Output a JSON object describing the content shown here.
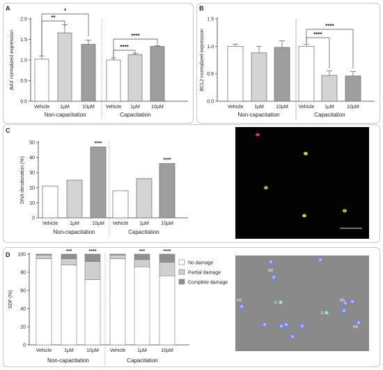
{
  "figure": {
    "panels": [
      {
        "letter": "A",
        "chart_data": {
          "type": "bar",
          "ylabel": "BAX normalized expression",
          "ylabel_italic": "BAX",
          "ylabel_rest": " normalized expression",
          "ylim": [
            0,
            2.0
          ],
          "yticks": [
            "0.0",
            "0.5",
            "1.0",
            "1.5",
            "2.0"
          ],
          "groups": [
            {
              "name": "Non-capacitation",
              "categories": [
                "Vehicle",
                "1µM",
                "10µM"
              ],
              "values": [
                1.02,
                1.66,
                1.38
              ],
              "errors": [
                0.08,
                0.2,
                0.1
              ]
            },
            {
              "name": "Capacitation",
              "categories": [
                "Vehicle",
                "1µM",
                "10µM"
              ],
              "values": [
                1.0,
                1.13,
                1.33
              ],
              "errors": [
                0.05,
                0.03,
                0.02
              ]
            }
          ],
          "significance": [
            "**",
            "*",
            "****",
            "****"
          ]
        }
      },
      {
        "letter": "B",
        "chart_data": {
          "type": "bar",
          "ylabel": "BCL2 normalized expression",
          "ylabel_italic": "BCL2",
          "ylabel_rest": " normalized expression",
          "ylim": [
            0,
            1.5
          ],
          "yticks": [
            "0.0",
            "0.5",
            "1.0",
            "1.5"
          ],
          "groups": [
            {
              "name": "Non-capacitation",
              "categories": [
                "Vehicle",
                "1µM",
                "10µM"
              ],
              "values": [
                1.0,
                0.88,
                0.98
              ],
              "errors": [
                0.04,
                0.12,
                0.12
              ]
            },
            {
              "name": "Capacitation",
              "categories": [
                "Vehicle",
                "1µM",
                "10µM"
              ],
              "values": [
                1.0,
                0.47,
                0.46
              ],
              "errors": [
                0.04,
                0.08,
                0.08
              ]
            }
          ],
          "significance": [
            "****",
            "****"
          ]
        }
      },
      {
        "letter": "C",
        "chart_data": {
          "type": "bar",
          "ylabel": "DNA denaturation (%)",
          "ylim": [
            0,
            50
          ],
          "yticks": [
            "0",
            "10",
            "20",
            "30",
            "40",
            "50"
          ],
          "groups": [
            {
              "name": "Non-capacitation",
              "categories": [
                "Vehicle",
                "1µM",
                "10µM"
              ],
              "values": [
                21,
                25,
                47
              ],
              "stars": [
                "",
                "",
                "****"
              ]
            },
            {
              "name": "Capacitation",
              "categories": [
                "Vehicle",
                "1µM",
                "10µM"
              ],
              "values": [
                18,
                26,
                36
              ],
              "stars": [
                "",
                "",
                "****"
              ]
            }
          ]
        }
      },
      {
        "letter": "D",
        "chart_data": {
          "type": "bar",
          "stacked": true,
          "ylabel": "SDF (%)",
          "ylim": [
            0,
            100
          ],
          "yticks": [
            "0",
            "20",
            "40",
            "60",
            "80",
            "100"
          ],
          "legend": [
            "No damage",
            "Partial damage",
            "Complete damage"
          ],
          "groups": [
            {
              "name": "Non-capacitation",
              "categories": [
                "Vehicle",
                "1µM",
                "10µM"
              ],
              "series": {
                "no_damage": [
                  95,
                  88,
                  72
                ],
                "partial_damage": [
                  4,
                  7,
                  20
                ],
                "complete_damage": [
                  1,
                  5,
                  8
                ]
              },
              "stars": [
                "",
                "***",
                "****"
              ]
            },
            {
              "name": "Capacitation",
              "categories": [
                "Vehicle",
                "1µM",
                "10µM"
              ],
              "series": {
                "no_damage": [
                  95,
                  86,
                  76
                ],
                "partial_damage": [
                  4,
                  8,
                  15
                ],
                "complete_damage": [
                  1,
                  6,
                  9
                ]
              },
              "stars": [
                "",
                "***",
                "****"
              ]
            }
          ]
        }
      }
    ],
    "micrograph_labels": [
      "ND",
      "PD",
      "D",
      "D",
      "PD",
      "ND"
    ],
    "colors": {
      "vehicle": "#ffffff",
      "low": "#d4d4d4",
      "high": "#9e9e9e",
      "no_damage": "#ffffff",
      "partial_damage": "#cfcfcf",
      "complete_damage": "#8f8f8f"
    }
  }
}
